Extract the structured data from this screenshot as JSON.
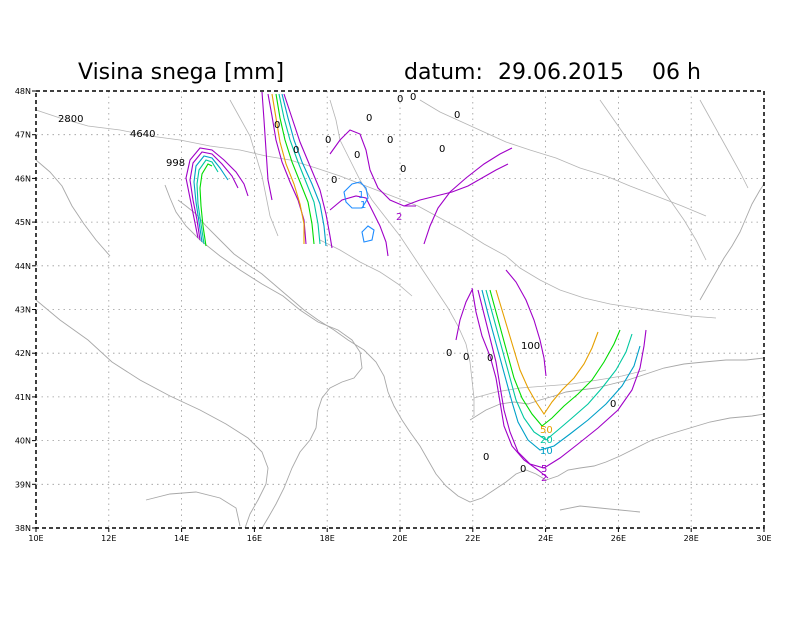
{
  "title": {
    "left": "Visina snega [mm]",
    "date_label": "datum:",
    "date": "29.06.2015",
    "hour": "06 h"
  },
  "axes": {
    "lon_labels": [
      "10E",
      "12E",
      "14E",
      "16E",
      "18E",
      "20E",
      "22E",
      "24E",
      "26E",
      "28E",
      "30E"
    ],
    "lat_labels": [
      "48N",
      "47N",
      "46N",
      "45N",
      "44N",
      "43N",
      "42N",
      "41N",
      "40N",
      "39N",
      "38N"
    ],
    "lon_range": [
      10,
      30
    ],
    "lat_range": [
      38,
      48
    ],
    "grid": true
  },
  "colors": {
    "contour_2": "#a000c8",
    "contour_5": "#a000c8",
    "contour_10": "#00a0c8",
    "contour_20": "#00c8a0",
    "contour_50": "#00dc00",
    "contour_100": "#e6a000",
    "low": "#1e8cff",
    "frame": "#000000",
    "coast": "#a8a8a8"
  },
  "labels": {
    "a": "2800",
    "b": "4640",
    "c": "998",
    "z1": "0",
    "z2": "0",
    "z3": "0",
    "z4": "0",
    "z5": "0",
    "z6": "0",
    "z7": "0",
    "z8": "0",
    "z9": "0",
    "z10": "0",
    "z11": "0",
    "z12": "0",
    "z13": "0",
    "z14": "0",
    "z15": "0",
    "z16": "0",
    "z17": "0",
    "z18": "0",
    "v1": "1",
    "v2": "2",
    "v3": "1",
    "h100": "100",
    "s50": "50",
    "s20": "20",
    "s10": "10",
    "s5": "5",
    "s2": "2"
  }
}
